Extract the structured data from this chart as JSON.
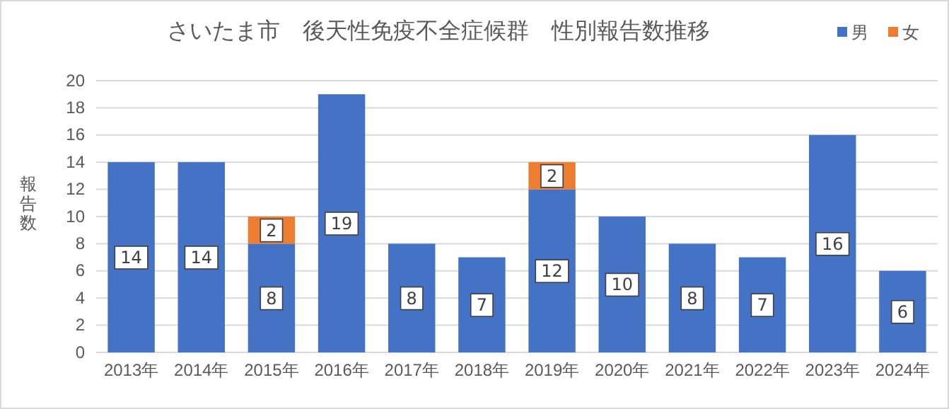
{
  "chart_data": {
    "type": "bar",
    "title": "さいたま市　後天性免疫不全症候群　性別報告数推移",
    "ylabel": "報告数",
    "categories": [
      "2013年",
      "2014年",
      "2015年",
      "2016年",
      "2017年",
      "2018年",
      "2019年",
      "2020年",
      "2021年",
      "2022年",
      "2023年",
      "2024年"
    ],
    "series": [
      {
        "name": "男",
        "color": "#4472c4",
        "values": [
          14,
          14,
          8,
          19,
          8,
          7,
          12,
          10,
          8,
          7,
          16,
          6
        ]
      },
      {
        "name": "女",
        "color": "#ed7d31",
        "values": [
          null,
          null,
          2,
          null,
          null,
          null,
          2,
          null,
          null,
          null,
          null,
          null
        ]
      }
    ],
    "stacked": true,
    "ylim": [
      0,
      20
    ],
    "yticks": [
      0,
      2,
      4,
      6,
      8,
      10,
      12,
      14,
      16,
      18,
      20
    ],
    "grid": "y",
    "legend": "top right",
    "data_labels": true
  }
}
